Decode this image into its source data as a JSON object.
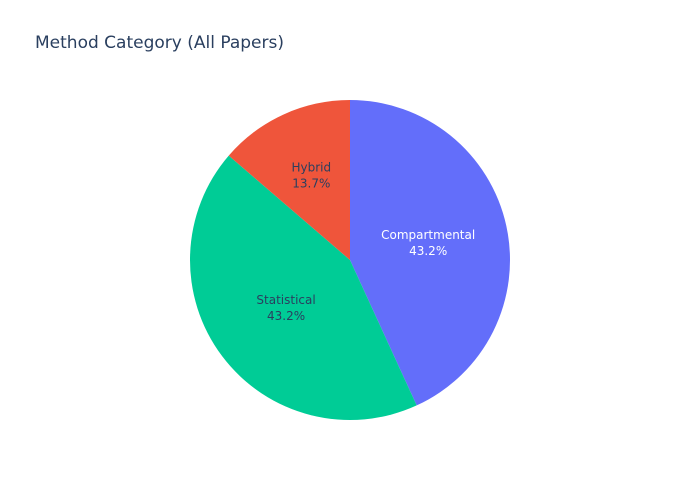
{
  "chart_data": {
    "type": "pie",
    "title": "Method Category (All Papers)",
    "slices": [
      {
        "label": "Compartmental",
        "value": 43.2,
        "display": "43.2%",
        "color": "#636efa",
        "text_color": "#ffffff"
      },
      {
        "label": "Statistical",
        "value": 43.2,
        "display": "43.2%",
        "color": "#00cc96",
        "text_color": "#2a3f5f"
      },
      {
        "label": "Hybrid",
        "value": 13.7,
        "display": "13.7%",
        "color": "#ef553b",
        "text_color": "#2a3f5f"
      }
    ],
    "start": "12 o'clock",
    "direction": "clockwise",
    "legend": "none"
  }
}
